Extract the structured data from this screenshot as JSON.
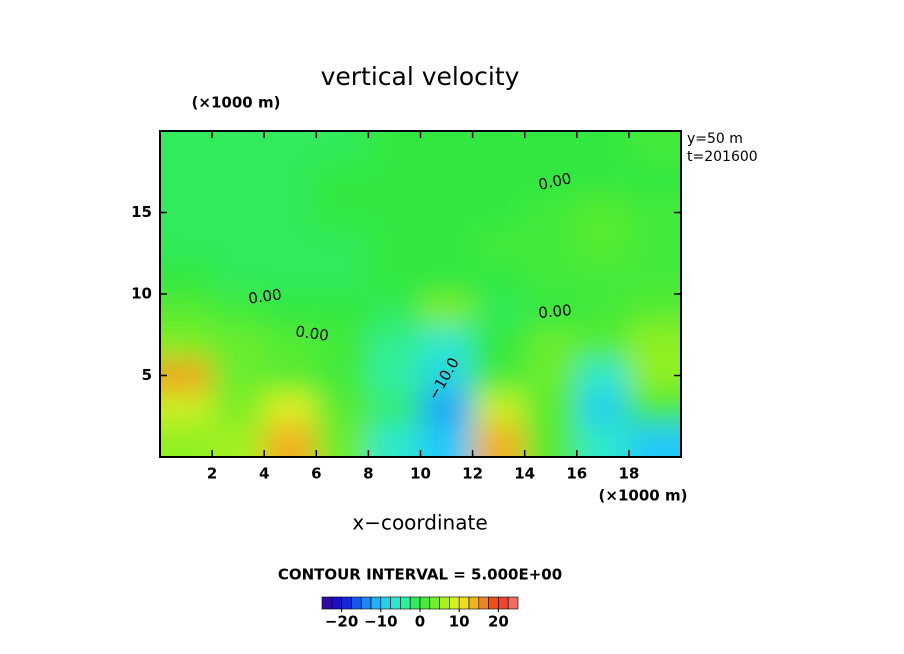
{
  "chart_data": {
    "type": "contour",
    "title": "vertical velocity",
    "xlabel": "x−coordinate",
    "xunit": "(×1000 m)",
    "yunit": "(×1000 m)",
    "info": [
      "y=50 m",
      "t=201600"
    ],
    "note": "CONTOUR INTERVAL = 5.000E+00",
    "contour_labels": [
      "0.00",
      "0.00",
      "0.00",
      "0.00",
      "−10.0"
    ],
    "xlim": [
      0,
      20
    ],
    "ylim": [
      0,
      20
    ],
    "xticks": [
      2,
      4,
      6,
      8,
      10,
      12,
      14,
      16,
      18
    ],
    "yticks": [
      5,
      10,
      15
    ],
    "x": [
      1,
      3,
      5,
      7,
      9,
      11,
      13,
      15,
      17,
      19
    ],
    "y": [
      1,
      3,
      5,
      7,
      9,
      11,
      13,
      15,
      17,
      19
    ],
    "z": [
      [
        5,
        6,
        14,
        3,
        -6,
        -10,
        14,
        2,
        -6,
        -10
      ],
      [
        8,
        4,
        9,
        2,
        -2,
        -12,
        8,
        2,
        -9,
        1
      ],
      [
        15,
        3,
        2,
        1,
        -4,
        -8,
        1,
        3,
        -6,
        5
      ],
      [
        4,
        3,
        2,
        1,
        -3,
        -6,
        0,
        3,
        2,
        5
      ],
      [
        2,
        1,
        0,
        0,
        -1,
        4,
        -1,
        0,
        1,
        2
      ],
      [
        0,
        -1,
        -1,
        -1,
        0,
        0,
        0,
        1,
        1,
        1
      ],
      [
        -1,
        -1,
        -1,
        -1,
        0,
        0,
        1,
        1,
        2,
        1
      ],
      [
        -1,
        -1,
        -1,
        0,
        0,
        0,
        0,
        1,
        2,
        1
      ],
      [
        -1,
        -1,
        -1,
        0,
        0,
        0,
        0,
        0,
        0,
        0
      ],
      [
        -1,
        -1,
        -1,
        -1,
        0,
        0,
        0,
        0,
        0,
        1
      ]
    ],
    "clim": [
      -25,
      25
    ],
    "cticks": [
      {
        "value": -20,
        "label": "−20"
      },
      {
        "value": -10,
        "label": "−10"
      },
      0,
      10,
      20
    ],
    "colors": [
      "#3b0a8c",
      "#1010d0",
      "#1a70f0",
      "#20c8f8",
      "#30f0c0",
      "#30e840",
      "#90f020",
      "#f0f020",
      "#f0a020",
      "#f03010",
      "#f08080"
    ]
  }
}
